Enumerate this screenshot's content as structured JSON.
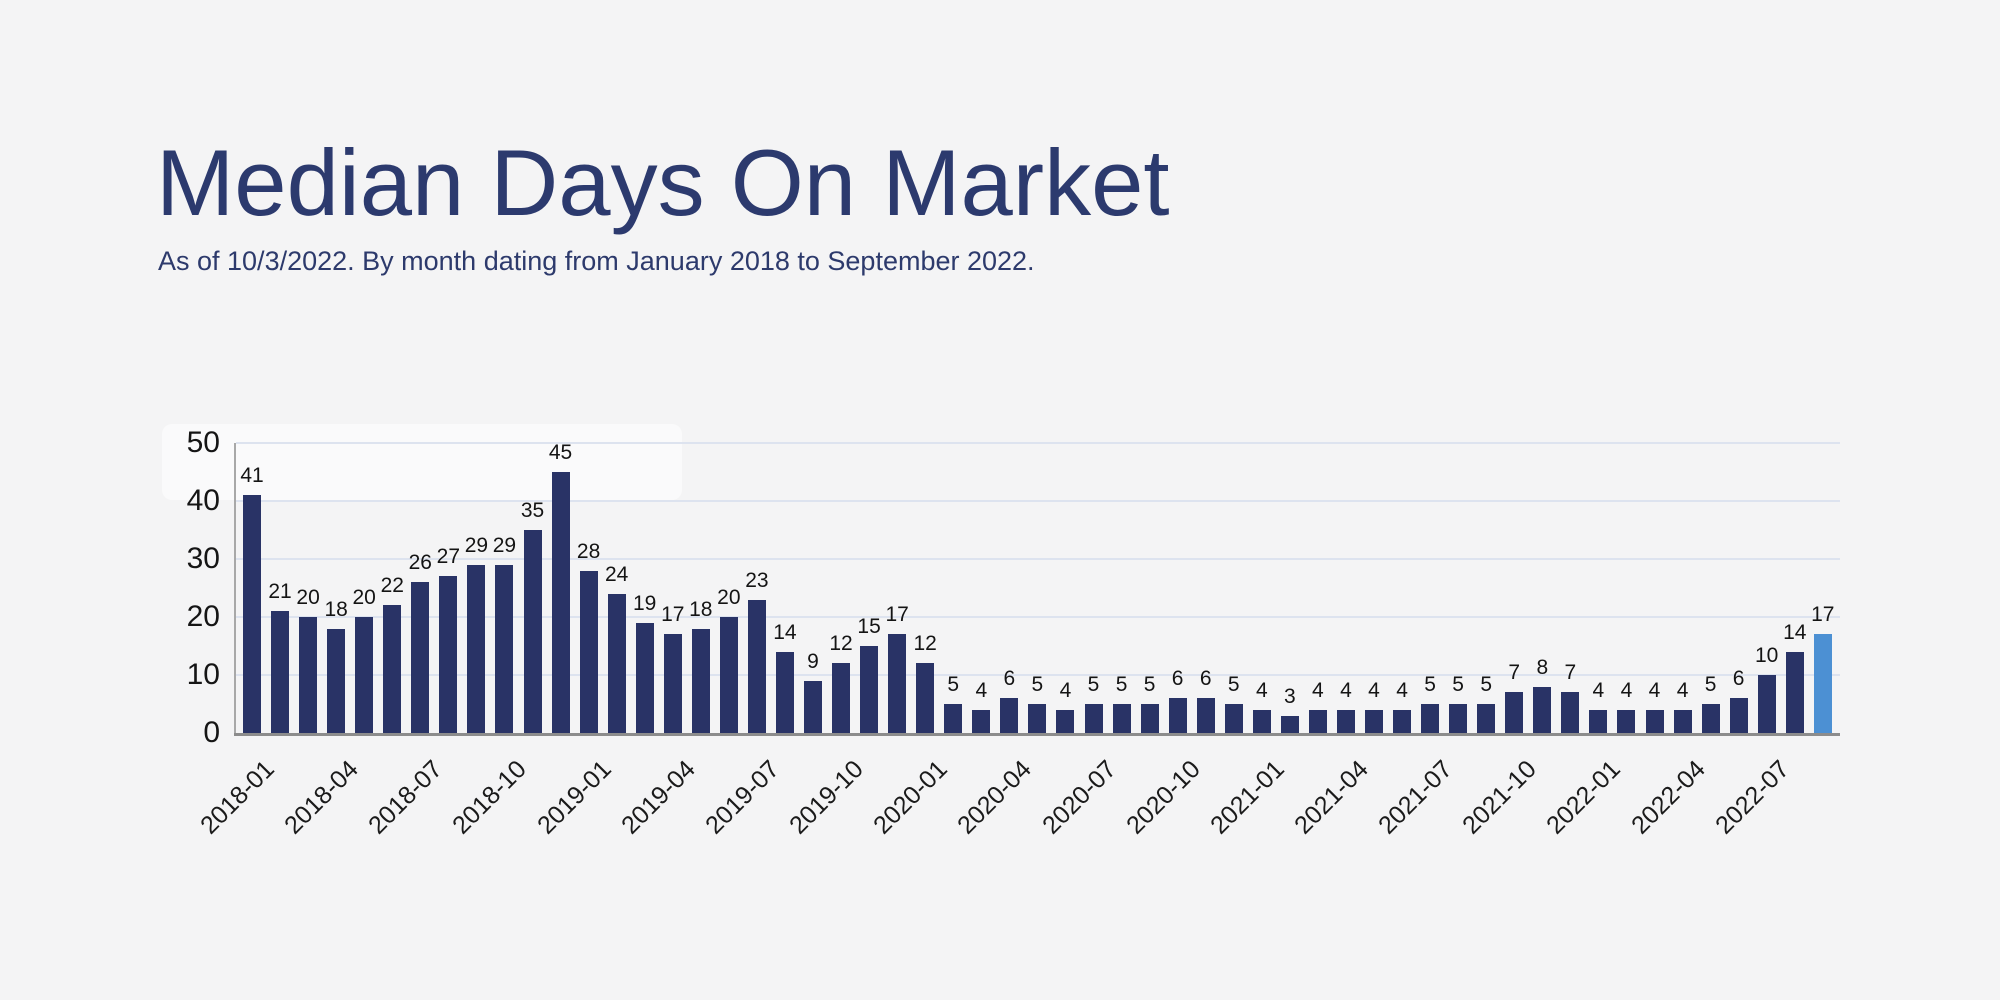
{
  "page": {
    "background_color": "#f4f4f5"
  },
  "chart_data": {
    "type": "bar",
    "title": "Median Days On Market",
    "subtitle": "As of 10/3/2022. By month dating from January 2018 to September 2022.",
    "xlabel": "",
    "ylabel": "",
    "ylim": [
      0,
      50
    ],
    "yticks": [
      0,
      10,
      20,
      30,
      40,
      50
    ],
    "grid": true,
    "legend": "none",
    "bar_color": "#293366",
    "highlight": {
      "index": 56,
      "color": "#4c90d3"
    },
    "axis_color": "#8c8c8c",
    "gridline_color": "#dde3ef",
    "categories": [
      "2018-01",
      "2018-02",
      "2018-03",
      "2018-04",
      "2018-05",
      "2018-06",
      "2018-07",
      "2018-08",
      "2018-09",
      "2018-10",
      "2018-11",
      "2018-12",
      "2019-01",
      "2019-02",
      "2019-03",
      "2019-04",
      "2019-05",
      "2019-06",
      "2019-07",
      "2019-08",
      "2019-09",
      "2019-10",
      "2019-11",
      "2019-12",
      "2020-01",
      "2020-02",
      "2020-03",
      "2020-04",
      "2020-05",
      "2020-06",
      "2020-07",
      "2020-08",
      "2020-09",
      "2020-10",
      "2020-11",
      "2020-12",
      "2021-01",
      "2021-02",
      "2021-03",
      "2021-04",
      "2021-05",
      "2021-06",
      "2021-07",
      "2021-08",
      "2021-09",
      "2021-10",
      "2021-11",
      "2021-12",
      "2022-01",
      "2022-02",
      "2022-03",
      "2022-04",
      "2022-05",
      "2022-06",
      "2022-07",
      "2022-08",
      "2022-09"
    ],
    "values": [
      41,
      21,
      20,
      18,
      20,
      22,
      26,
      27,
      29,
      29,
      35,
      45,
      28,
      24,
      19,
      17,
      18,
      20,
      23,
      14,
      9,
      12,
      15,
      17,
      12,
      5,
      4,
      6,
      5,
      4,
      5,
      5,
      5,
      6,
      6,
      5,
      4,
      3,
      4,
      4,
      4,
      4,
      5,
      5,
      5,
      7,
      8,
      7,
      4,
      4,
      4,
      4,
      5,
      6,
      10,
      14,
      17
    ],
    "xtick_labels": [
      "2018-01",
      "2018-04",
      "2018-07",
      "2018-10",
      "2019-01",
      "2019-04",
      "2019-07",
      "2019-10",
      "2020-01",
      "2020-04",
      "2020-07",
      "2020-10",
      "2021-01",
      "2021-04",
      "2021-07",
      "2021-10",
      "2022-01",
      "2022-04",
      "2022-07"
    ],
    "value_labels": true
  }
}
